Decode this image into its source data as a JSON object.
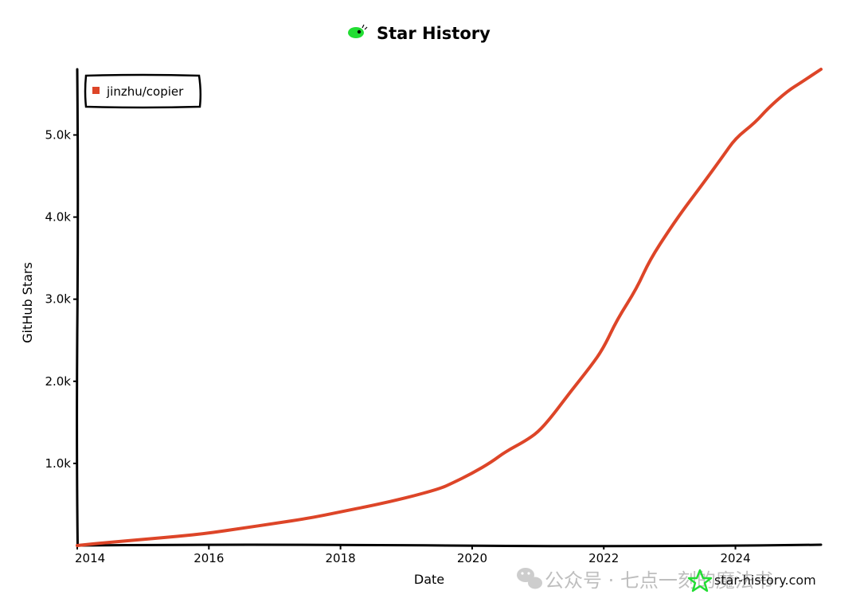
{
  "chart_data": {
    "type": "line",
    "title": "Star History",
    "xlabel": "Date",
    "ylabel": "GitHub Stars",
    "x_ticks": [
      "2014",
      "2016",
      "2018",
      "2020",
      "2022",
      "2024"
    ],
    "y_ticks": [
      "1.0k",
      "2.0k",
      "3.0k",
      "4.0k",
      "5.0k"
    ],
    "xlim": [
      2014.0,
      2025.3
    ],
    "ylim": [
      0,
      5800
    ],
    "grid": false,
    "legend_position": "top-left",
    "series": [
      {
        "name": "jinzhu/copier",
        "color": "#dd4528",
        "x": [
          2014.0,
          2014.5,
          2015.0,
          2015.5,
          2016.0,
          2016.5,
          2017.0,
          2017.5,
          2018.0,
          2018.5,
          2019.0,
          2019.5,
          2019.7,
          2020.0,
          2020.3,
          2020.5,
          2020.8,
          2021.0,
          2021.2,
          2021.5,
          2021.8,
          2022.0,
          2022.2,
          2022.5,
          2022.7,
          2023.0,
          2023.2,
          2023.5,
          2023.8,
          2024.0,
          2024.3,
          2024.5,
          2024.8,
          2025.0,
          2025.3
        ],
        "values": [
          0,
          40,
          75,
          110,
          150,
          210,
          270,
          330,
          410,
          490,
          580,
          690,
          760,
          880,
          1020,
          1140,
          1270,
          1380,
          1560,
          1880,
          2180,
          2410,
          2750,
          3130,
          3480,
          3850,
          4080,
          4400,
          4730,
          4960,
          5150,
          5330,
          5540,
          5640,
          5800
        ]
      }
    ]
  },
  "watermark": {
    "site": "star-history.com",
    "wechat": "公众号 · 七点一刻的魔法书"
  },
  "colors": {
    "line": "#dd4528",
    "logo": "#22dd33"
  }
}
